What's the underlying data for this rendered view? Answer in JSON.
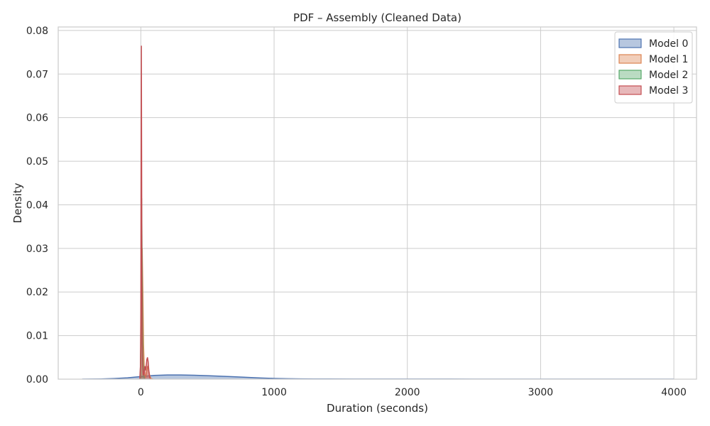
{
  "chart_data": {
    "type": "area",
    "title": "PDF – Assembly (Cleaned Data)",
    "xlabel": "Duration (seconds)",
    "ylabel": "Density",
    "xlim": [
      -620,
      4170
    ],
    "ylim": [
      0,
      0.0808
    ],
    "grid": true,
    "legend_position": "top-right",
    "x_ticks": [
      0,
      1000,
      2000,
      3000,
      4000
    ],
    "x_tick_labels": [
      "0",
      "1000",
      "2000",
      "3000",
      "4000"
    ],
    "y_ticks": [
      0,
      0.01,
      0.02,
      0.03,
      0.04,
      0.05,
      0.06,
      0.07,
      0.08
    ],
    "y_tick_labels": [
      "0.00",
      "0.01",
      "0.02",
      "0.03",
      "0.04",
      "0.05",
      "0.06",
      "0.07",
      "0.08"
    ],
    "series": [
      {
        "name": "Model 0",
        "color": "#4c72b0",
        "x": [
          -440,
          -300,
          -200,
          -100,
          0,
          100,
          200,
          300,
          400,
          500,
          600,
          700,
          800,
          900,
          1000,
          1100,
          1200,
          1300,
          1400,
          1600,
          1800,
          2000,
          2500,
          3000,
          3500,
          4000
        ],
        "y": [
          0.0,
          5e-05,
          0.00015,
          0.0003,
          0.0006,
          0.00085,
          0.00095,
          0.00095,
          0.0009,
          0.0008,
          0.00068,
          0.00055,
          0.0004,
          0.00027,
          0.00017,
          0.0001,
          7e-05,
          5e-05,
          4e-05,
          3e-05,
          2e-05,
          2e-05,
          1e-05,
          1e-05,
          1e-05,
          0.0
        ]
      },
      {
        "name": "Model 1",
        "color": "#dd8452",
        "x": [
          -5,
          0,
          5,
          10,
          15,
          20,
          25,
          30,
          35,
          40,
          45,
          50,
          55,
          60,
          65,
          70,
          75,
          80,
          90
        ],
        "y": [
          0.0,
          0.005,
          0.02,
          0.03,
          0.02,
          0.008,
          0.003,
          0.001,
          0.0005,
          0.001,
          0.002,
          0.003,
          0.0025,
          0.0018,
          0.001,
          0.0005,
          0.0002,
          0.0001,
          0.0
        ]
      },
      {
        "name": "Model 2",
        "color": "#55a868",
        "x": [
          -5,
          0,
          3,
          6,
          9,
          12,
          15,
          20,
          25,
          30
        ],
        "y": [
          0.0,
          0.008,
          0.025,
          0.0415,
          0.03,
          0.012,
          0.005,
          0.0015,
          0.0003,
          0.0
        ]
      },
      {
        "name": "Model 3",
        "color": "#c44e52",
        "x": [
          -8,
          -3,
          0,
          2,
          4,
          6,
          8,
          10,
          14,
          18,
          22,
          26,
          30,
          35,
          40,
          45,
          50,
          55,
          60,
          65,
          70
        ],
        "y": [
          0.0,
          0.003,
          0.015,
          0.05,
          0.0765,
          0.05,
          0.02,
          0.008,
          0.003,
          0.001,
          0.001,
          0.002,
          0.003,
          0.002,
          0.003,
          0.0045,
          0.005,
          0.004,
          0.002,
          0.0008,
          0.0
        ]
      }
    ]
  }
}
